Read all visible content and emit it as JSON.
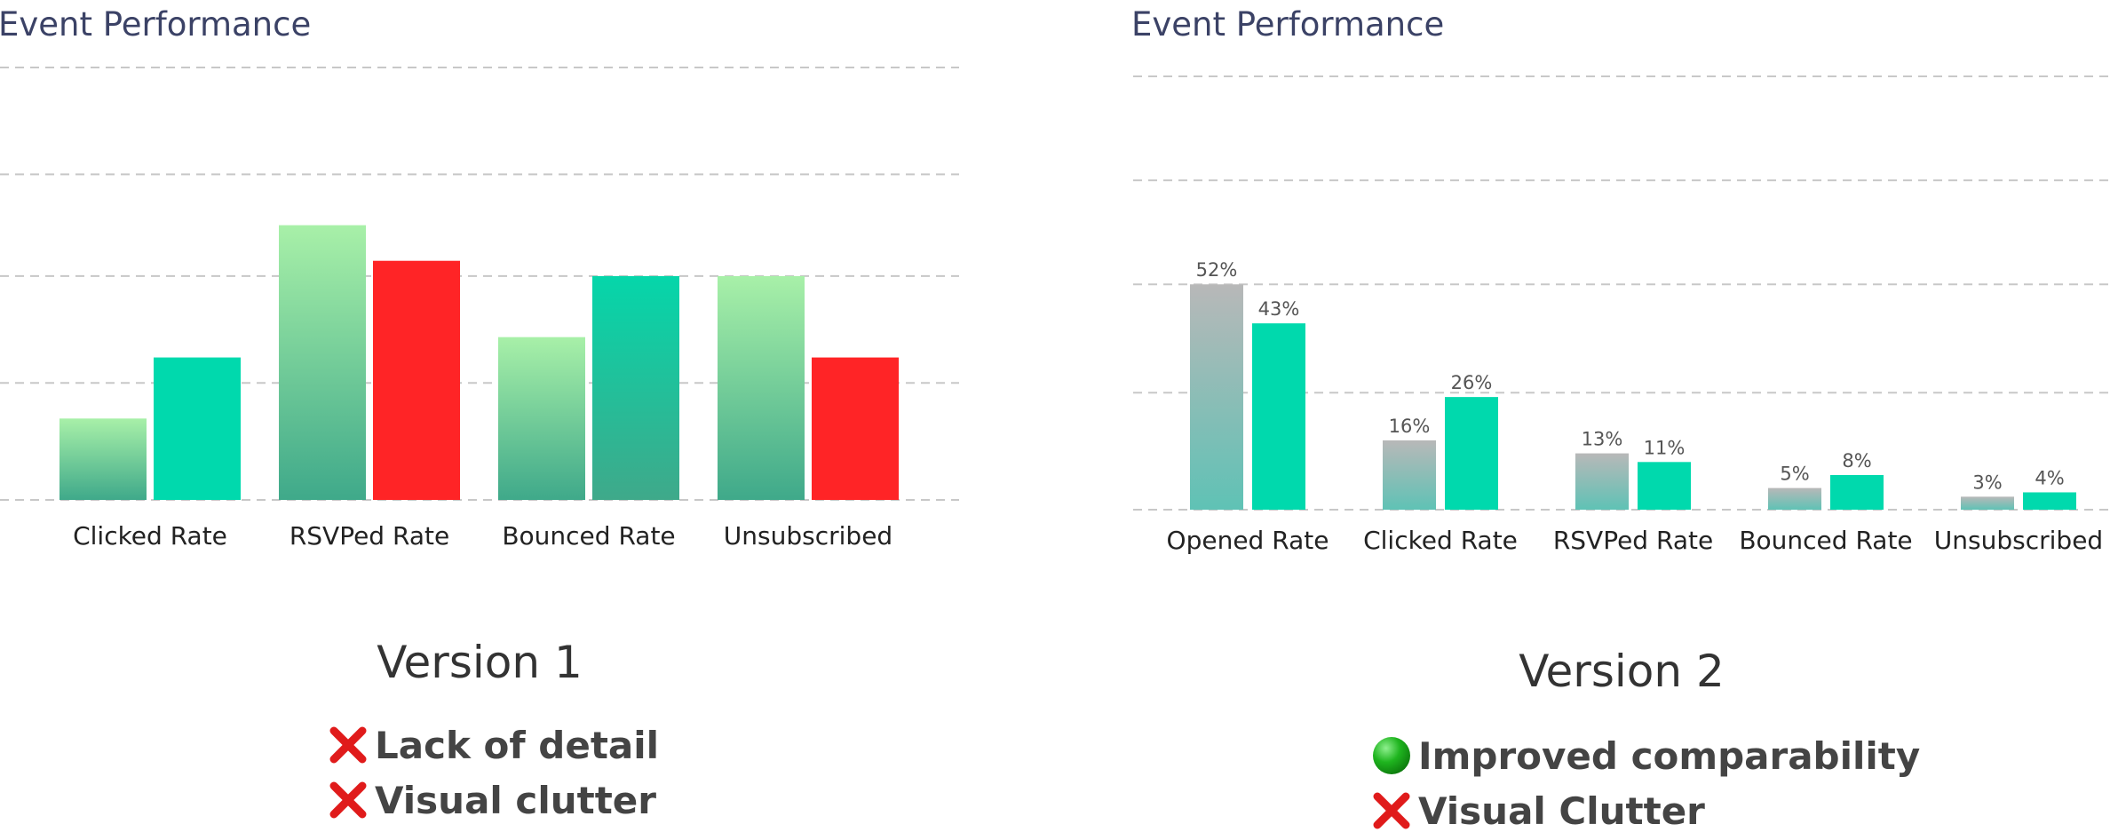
{
  "panels": [
    {
      "version_label": "Version 1",
      "notes": [
        {
          "icon": "cross-mark-icon",
          "text": "Lack of detail"
        },
        {
          "icon": "cross-mark-icon",
          "text": "Visual clutter"
        }
      ]
    },
    {
      "version_label": "Version 2",
      "notes": [
        {
          "icon": "green-circle-icon",
          "text": "Improved comparability"
        },
        {
          "icon": "cross-mark-icon",
          "text": "Visual Clutter"
        }
      ]
    }
  ],
  "colors": {
    "title": "#3b4266",
    "green_gradient_top": "#a8f0a8",
    "green_gradient_bottom": "#3fa98a",
    "teal": "#00d9ad",
    "teal_gradient_top": "#05d6aa",
    "teal_gradient_bottom": "#3fa98a",
    "red": "#ff2426",
    "gray_gradient_top": "#b8b8b8",
    "gray_gradient_bottom": "#5fc2b5",
    "grid": "#c8c8c8",
    "cross": "#e01b1b",
    "dot": "#1fb51f"
  },
  "chart_data": [
    {
      "type": "bar",
      "title": "Event Performance",
      "categories": [
        "Clicked Rate",
        "RSVPed Rate",
        "Bounced Rate",
        "Unsubscribed"
      ],
      "series": [
        {
          "values": [
            16,
            54,
            32,
            44
          ]
        },
        {
          "values": [
            28,
            47,
            44,
            28
          ]
        }
      ],
      "bar_styles": [
        [
          "green-gradient",
          "teal"
        ],
        [
          "green-gradient",
          "red"
        ],
        [
          "green-gradient",
          "teal-gradient"
        ],
        [
          "green-gradient",
          "red"
        ]
      ],
      "ylim": [
        0,
        85
      ],
      "gridlines": [
        0,
        23,
        44,
        64,
        85
      ],
      "grid": true,
      "legend": "none",
      "data_labels": false
    },
    {
      "type": "bar",
      "title": "Event Performance",
      "categories": [
        "Opened Rate",
        "Clicked Rate",
        "RSVPed Rate",
        "Bounced Rate",
        "Unsubscribed"
      ],
      "series": [
        {
          "values": [
            52,
            16,
            13,
            5,
            3
          ],
          "labels": [
            "52%",
            "16%",
            "13%",
            "5%",
            "3%"
          ]
        },
        {
          "values": [
            43,
            26,
            11,
            8,
            4
          ],
          "labels": [
            "43%",
            "26%",
            "11%",
            "8%",
            "4%"
          ]
        }
      ],
      "bar_styles": [
        [
          "gray-gradient",
          "teal"
        ],
        [
          "gray-gradient",
          "teal"
        ],
        [
          "gray-gradient",
          "teal"
        ],
        [
          "gray-gradient",
          "teal"
        ],
        [
          "gray-gradient",
          "teal"
        ]
      ],
      "ylim": [
        0,
        100
      ],
      "gridlines": [
        0,
        27,
        52,
        76,
        100
      ],
      "grid": true,
      "legend": "none",
      "data_labels": true
    }
  ]
}
